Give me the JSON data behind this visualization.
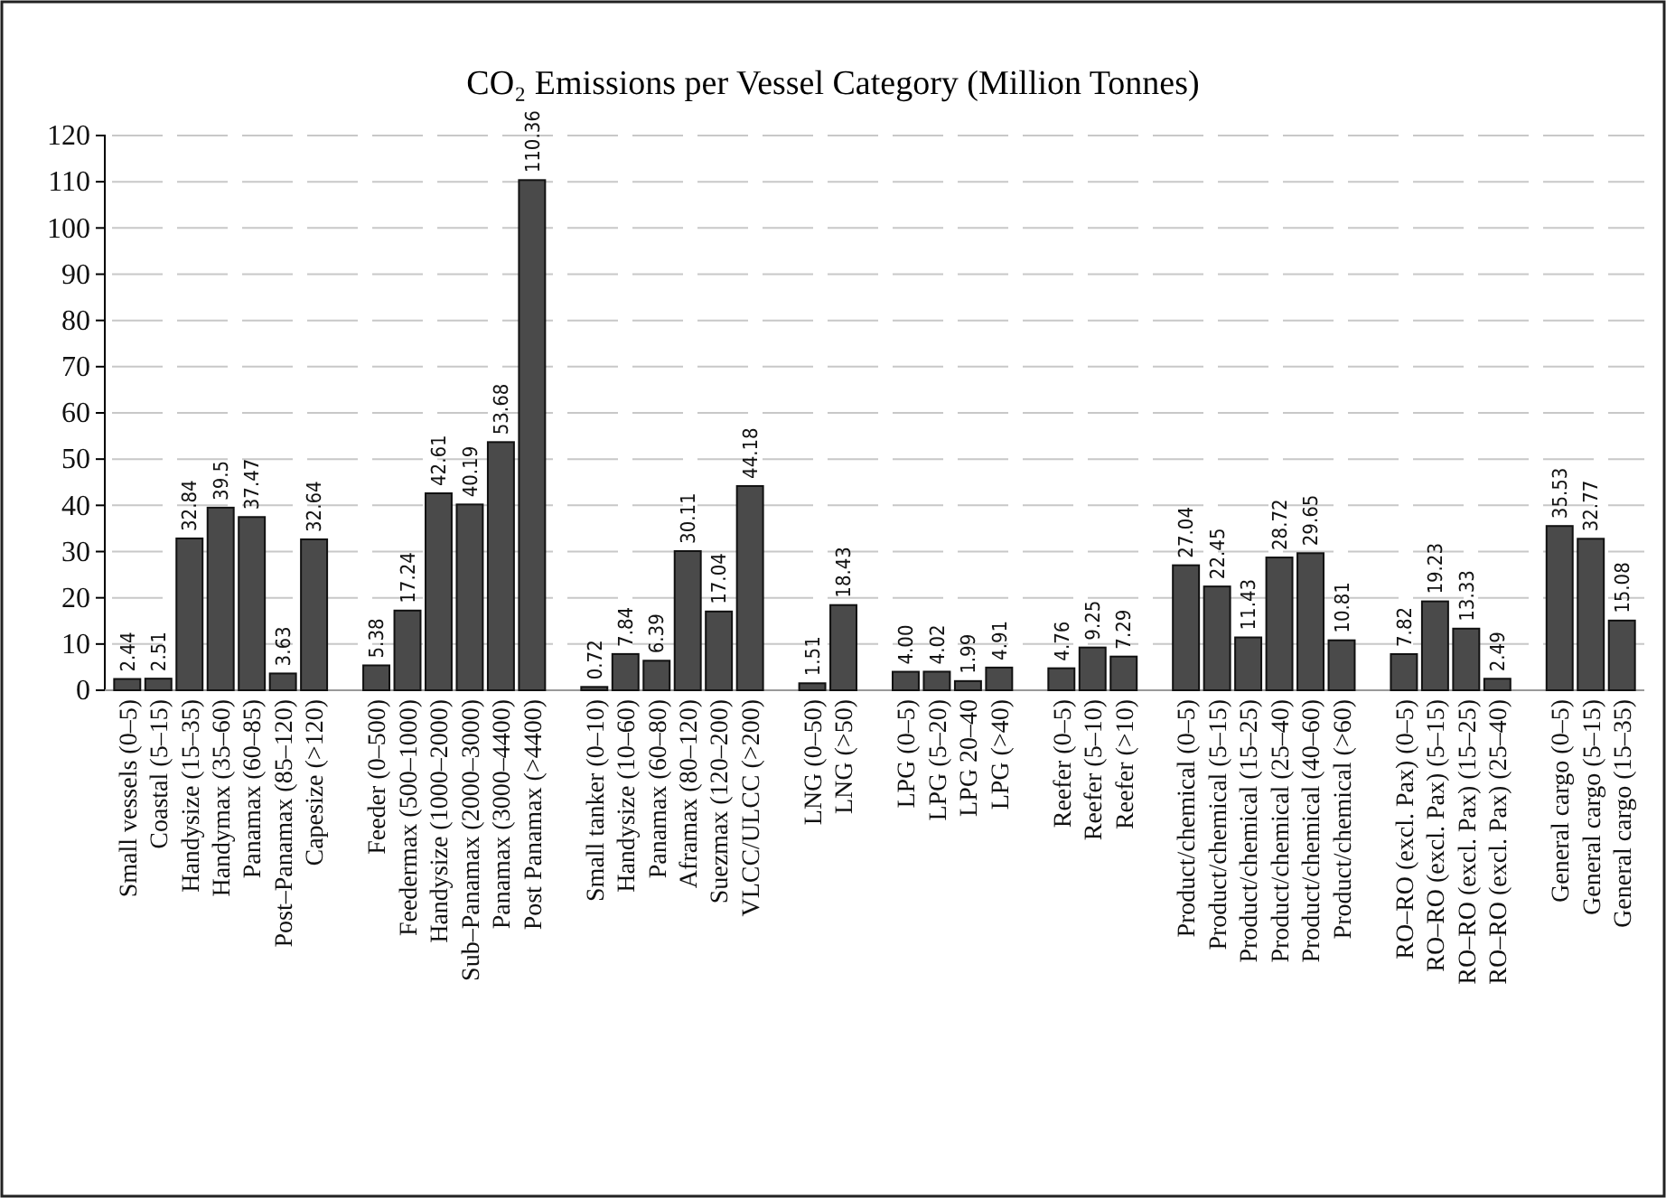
{
  "chart_data": {
    "type": "bar",
    "title": "CO₂ Emissions per Vessel Category (Million Tonnes)",
    "categories": [
      "Small vessels (0–5)",
      "Coastal (5–15)",
      "Handysize (15–35)",
      "Handymax (35–60)",
      "Panamax (60–85)",
      "Post–Panamax (85–120)",
      "Capesize (>120)",
      null,
      "Feeder (0–500)",
      "Feedermax (500–1000)",
      "Handysize (1000–2000)",
      "Sub–Panamax (2000–3000)",
      "Panamax (3000–4400)",
      "Post Panamax (>4400)",
      null,
      "Small tanker (0–10)",
      "Handysize (10–60)",
      "Panamax (60–80)",
      "Aframax (80–120)",
      "Suezmax (120–200)",
      "VLCC/ULCC (>200)",
      null,
      "LNG (0–50)",
      "LNG (>50)",
      null,
      "LPG (0–5)",
      "LPG (5–20)",
      "LPG 20–40",
      "LPG (>40)",
      null,
      "Reefer (0–5)",
      "Reefer (5–10)",
      "Reefer (>10)",
      null,
      "Product/chemical (0–5)",
      "Product/chemical (5–15)",
      "Product/chemical (15–25)",
      "Product/chemical (25–40)",
      "Product/chemical (40–60)",
      "Product/chemical (>60)",
      null,
      "RO–RO (excl. Pax) (0–5)",
      "RO–RO (excl. Pax) (5–15)",
      "RO–RO (excl. Pax) (15–25)",
      "RO–RO (excl. Pax) (25–40)",
      null,
      "General cargo (0–5)",
      "General cargo (5–15)",
      "General cargo (15–35)"
    ],
    "values": [
      2.44,
      2.51,
      32.84,
      39.5,
      37.47,
      3.63,
      32.64,
      null,
      5.38,
      17.24,
      42.61,
      40.19,
      53.68,
      110.36,
      null,
      0.72,
      7.84,
      6.39,
      30.11,
      17.04,
      44.18,
      null,
      1.51,
      18.43,
      null,
      4.0,
      4.02,
      1.99,
      4.91,
      null,
      4.76,
      9.25,
      7.29,
      null,
      27.04,
      22.45,
      11.43,
      28.72,
      29.65,
      10.81,
      null,
      7.82,
      19.23,
      13.33,
      2.49,
      null,
      35.53,
      32.77,
      15.08
    ],
    "value_labels": [
      "2.44",
      "2.51",
      "32.84",
      "39.5",
      "37.47",
      "3.63",
      "32.64",
      null,
      "5.38",
      "17.24",
      "42.61",
      "40.19",
      "53.68",
      "110.36",
      null,
      "0.72",
      "7.84",
      "6.39",
      "30.11",
      "17.04",
      "44.18",
      null,
      "1.51",
      "18.43",
      null,
      "4.00",
      "4.02",
      "1.99",
      "4.91",
      null,
      "4.76",
      "9.25",
      "7.29",
      null,
      "27.04",
      "22.45",
      "11.43",
      "28.72",
      "29.65",
      "10.81",
      null,
      "7.82",
      "19.23",
      "13.33",
      "2.49",
      null,
      "35.53",
      "32.77",
      "15.08"
    ],
    "color": "#4a4a4a",
    "ylim": [
      0,
      120
    ],
    "yticks": [
      0,
      10,
      20,
      30,
      40,
      50,
      60,
      70,
      80,
      90,
      100,
      110,
      120
    ],
    "grid": "y"
  }
}
